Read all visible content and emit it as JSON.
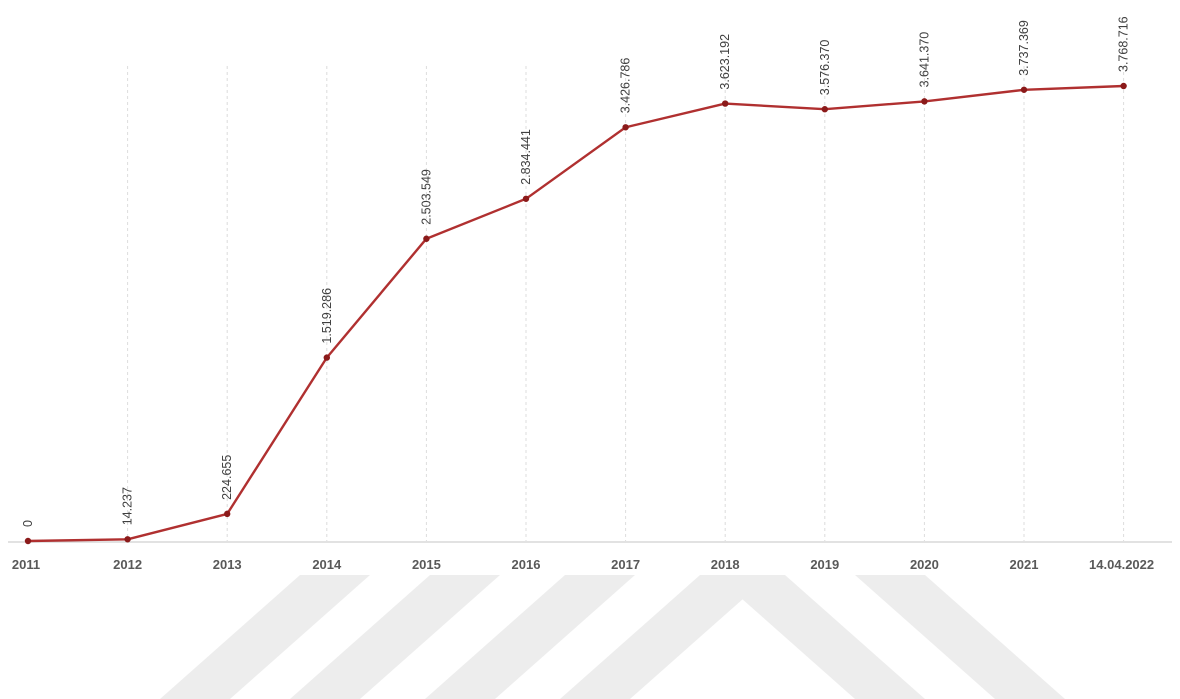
{
  "chart_data": {
    "type": "line",
    "title": "",
    "xlabel": "",
    "ylabel": "",
    "categories": [
      "2011",
      "2012",
      "2013",
      "2014",
      "2015",
      "2016",
      "2017",
      "2018",
      "2019",
      "2020",
      "2021",
      "14.04.2022"
    ],
    "series": [
      {
        "values": [
          0,
          14237,
          224655,
          1519286,
          2503549,
          2834441,
          3426786,
          3623192,
          3576370,
          3641370,
          3737369,
          3768716
        ],
        "data_labels": [
          "0",
          "14.237",
          "224.655",
          "1.519.286",
          "2.503.549",
          "2.834.441",
          "3.426.786",
          "3.623.192",
          "3.576.370",
          "3.641.370",
          "3.737.369",
          "3.768.716"
        ]
      }
    ],
    "ylim": [
      0,
      3768716
    ],
    "grid": "vertical-dashed",
    "legend": "none",
    "colors": {
      "line": "#b03030",
      "marker": "#8b1a1a",
      "grid": "#dcdcdc",
      "axis": "#d0d0d0",
      "watermark": "#ededed"
    }
  }
}
